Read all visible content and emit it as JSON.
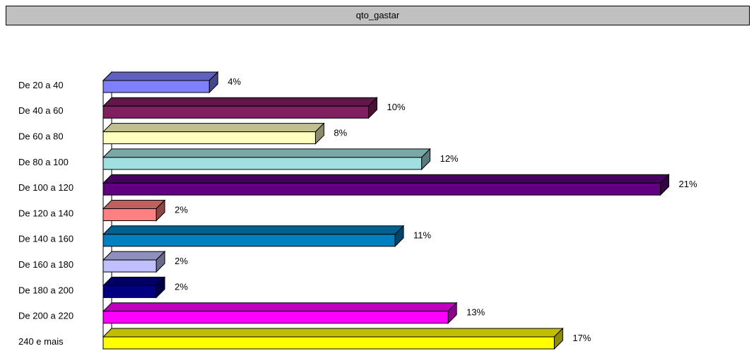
{
  "chart_data": {
    "type": "bar",
    "orientation": "horizontal",
    "style": "3d",
    "title": "qto_gastar",
    "categories": [
      "De 20 a 40",
      "De 40 a 60",
      "De 60 a 80",
      "De 80 a 100",
      "De 100 a 120",
      "De 120 a 140",
      "De 140 a 160",
      "De 160 a 180",
      "De 180 a 200",
      "De 200 a 220",
      "240 e mais"
    ],
    "values": [
      4,
      10,
      8,
      12,
      21,
      2,
      11,
      2,
      2,
      13,
      17
    ],
    "value_labels": [
      "4%",
      "10%",
      "8%",
      "12%",
      "21%",
      "2%",
      "11%",
      "2%",
      "2%",
      "13%",
      "17%"
    ],
    "colors": [
      "#8080ff",
      "#802060",
      "#ffffc0",
      "#a0e0e0",
      "#600080",
      "#ff8080",
      "#0080c0",
      "#c0c0ff",
      "#000080",
      "#ff00ff",
      "#ffff00"
    ],
    "unit": "%",
    "grid": false,
    "legend": "none"
  }
}
